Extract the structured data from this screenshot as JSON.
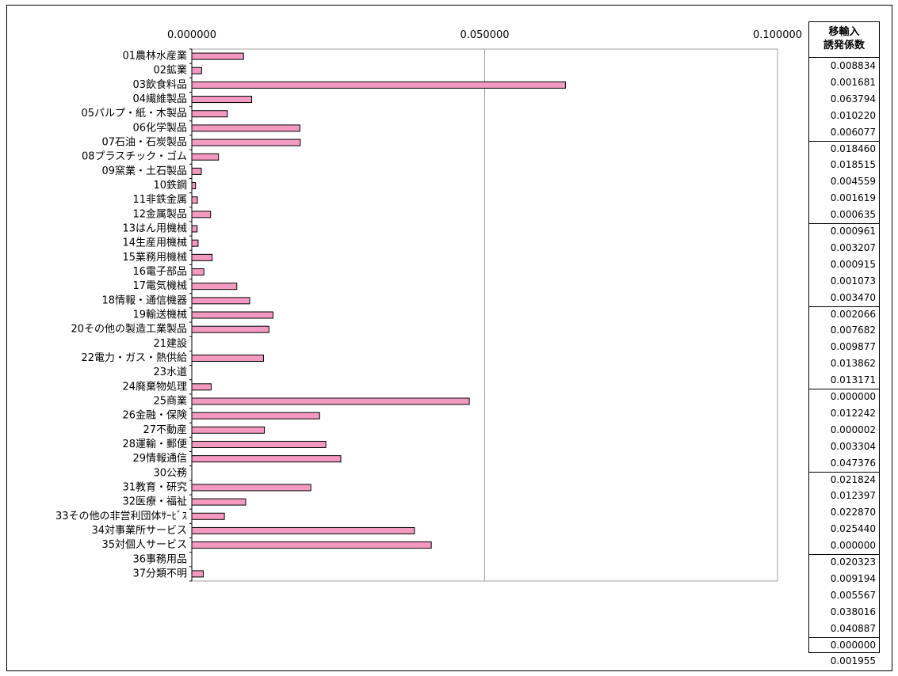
{
  "chart_data": {
    "type": "bar",
    "orientation": "horizontal",
    "categories": [
      "01農林水産業",
      "02鉱業",
      "03飲食料品",
      "04繊維製品",
      "05パルプ・紙・木製品",
      "06化学製品",
      "07石油・石炭製品",
      "08プラスチック・ゴム",
      "09窯業・土石製品",
      "10鉄鋼",
      "11非鉄金属",
      "12金属製品",
      "13はん用機械",
      "14生産用機械",
      "15業務用機械",
      "16電子部品",
      "17電気機械",
      "18情報・通信機器",
      "19輸送機械",
      "20その他の製造工業製品",
      "21建設",
      "22電力・ガス・熱供給",
      "23水道",
      "24廃棄物処理",
      "25商業",
      "26金融・保険",
      "27不動産",
      "28運輸・郵便",
      "29情報通信",
      "30公務",
      "31教育・研究",
      "32医療・福祉",
      "33その他の非営利団体ｻｰﾋﾞｽ",
      "34対事業所サービス",
      "35対個人サービス",
      "36事務用品",
      "37分類不明"
    ],
    "values": [
      0.008834,
      0.001681,
      0.063794,
      0.01022,
      0.006077,
      0.01846,
      0.018515,
      0.004559,
      0.001619,
      0.000635,
      0.000961,
      0.003207,
      0.000915,
      0.001073,
      0.00347,
      0.002066,
      0.007682,
      0.009877,
      0.013862,
      0.013171,
      0.0,
      0.012242,
      2e-06,
      0.003304,
      0.047376,
      0.021824,
      0.012397,
      0.02287,
      0.02544,
      0.0,
      0.020323,
      0.009194,
      0.005567,
      0.038016,
      0.040887,
      0.0,
      0.001955
    ],
    "xlim": [
      0,
      0.1
    ],
    "ticks": [
      0,
      0.05,
      0.1
    ],
    "tick_labels": [
      "0.000000",
      "0.050000",
      "0.100000"
    ],
    "grid": true,
    "bar_color": "#f49ac1"
  },
  "table": {
    "header_line1": "移輸入",
    "header_line2": "誘発係数",
    "values": [
      "0.008834",
      "0.001681",
      "0.063794",
      "0.010220",
      "0.006077",
      "0.018460",
      "0.018515",
      "0.004559",
      "0.001619",
      "0.000635",
      "0.000961",
      "0.003207",
      "0.000915",
      "0.001073",
      "0.003470",
      "0.002066",
      "0.007682",
      "0.009877",
      "0.013862",
      "0.013171",
      "0.000000",
      "0.012242",
      "0.000002",
      "0.003304",
      "0.047376",
      "0.021824",
      "0.012397",
      "0.022870",
      "0.025440",
      "0.000000",
      "0.020323",
      "0.009194",
      "0.005567",
      "0.038016",
      "0.040887",
      "0.000000",
      "0.001955"
    ],
    "group_sizes": [
      5,
      5,
      5,
      5,
      5,
      5,
      5,
      2
    ]
  }
}
